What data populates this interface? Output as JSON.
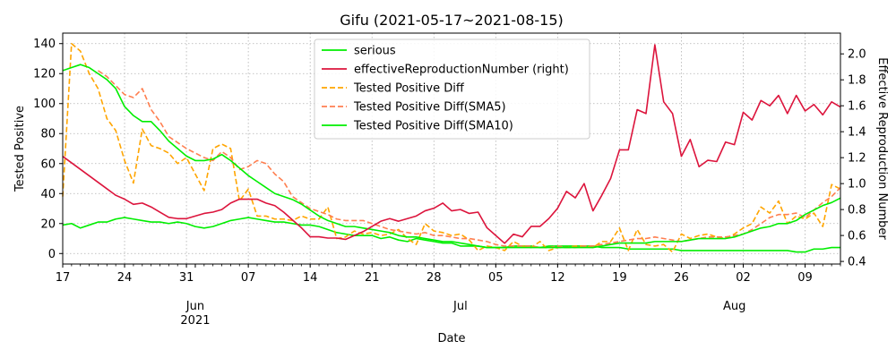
{
  "chart_data": {
    "type": "line",
    "title": "Gifu (2021-05-17~2021-08-15)",
    "xlabel": "Date",
    "ylabel_left": "Tested Positive",
    "ylabel_right": "Effective Reproduction Number",
    "start_date": "2021-05-17",
    "end_date": "2021-08-13",
    "ylim_left": [
      -7,
      147
    ],
    "ylim_right": [
      0.38,
      2.16
    ],
    "yticks_left": [
      "0",
      "20",
      "40",
      "60",
      "80",
      "100",
      "120",
      "140"
    ],
    "yticks_right": [
      "0.4",
      "0.6",
      "0.8",
      "1.0",
      "1.2",
      "1.4",
      "1.6",
      "1.8",
      "2.0"
    ],
    "x_day_ticks": [
      {
        "date": "2021-05-17",
        "label": "17"
      },
      {
        "date": "2021-05-24",
        "label": "24"
      },
      {
        "date": "2021-05-31",
        "label": "31"
      },
      {
        "date": "2021-06-07",
        "label": "07"
      },
      {
        "date": "2021-06-14",
        "label": "14"
      },
      {
        "date": "2021-06-21",
        "label": "21"
      },
      {
        "date": "2021-06-28",
        "label": "28"
      },
      {
        "date": "2021-07-05",
        "label": "05"
      },
      {
        "date": "2021-07-12",
        "label": "12"
      },
      {
        "date": "2021-07-19",
        "label": "19"
      },
      {
        "date": "2021-07-26",
        "label": "26"
      },
      {
        "date": "2021-08-02",
        "label": "02"
      },
      {
        "date": "2021-08-09",
        "label": "09"
      }
    ],
    "x_month_ticks": [
      {
        "date": "2021-06-01",
        "label": "Jun",
        "sublabel": "2021"
      },
      {
        "date": "2021-07-01",
        "label": "Jul",
        "sublabel": ""
      },
      {
        "date": "2021-08-01",
        "label": "Aug",
        "sublabel": ""
      }
    ],
    "legend_position": "upper-center",
    "grid": true,
    "series": [
      {
        "name": "serious",
        "axis": "left",
        "color": "#00ee00",
        "dash": "solid",
        "values": [
          19,
          20,
          17,
          19,
          21,
          21,
          23,
          24,
          23,
          22,
          21,
          21,
          20,
          21,
          20,
          18,
          17,
          18,
          20,
          22,
          23,
          24,
          23,
          22,
          21,
          21,
          20,
          19,
          19,
          18,
          16,
          14,
          13,
          12,
          12,
          12,
          10,
          11,
          9,
          8,
          10,
          9,
          8,
          7,
          7,
          5,
          5,
          5,
          4,
          4,
          4,
          5,
          5,
          5,
          4,
          5,
          5,
          5,
          5,
          5,
          5,
          4,
          4,
          4,
          3,
          3,
          3,
          3,
          3,
          3,
          2,
          2,
          2,
          2,
          2,
          2,
          2,
          2,
          2,
          2,
          2,
          2,
          2,
          1,
          1,
          3,
          3,
          4,
          4,
          4,
          4,
          4,
          4,
          4,
          4
        ]
      },
      {
        "name": "effectiveReproductionNumber (right)",
        "axis": "right",
        "color": "#dc143c",
        "dash": "solid",
        "values": [
          1.21,
          1.16,
          1.11,
          1.06,
          1.01,
          0.96,
          0.91,
          0.88,
          0.84,
          0.85,
          0.82,
          0.78,
          0.74,
          0.73,
          0.73,
          0.75,
          0.77,
          0.78,
          0.8,
          0.85,
          0.88,
          0.88,
          0.88,
          0.85,
          0.83,
          0.78,
          0.72,
          0.66,
          0.59,
          0.59,
          0.58,
          0.58,
          0.57,
          0.6,
          0.63,
          0.67,
          0.71,
          0.73,
          0.71,
          0.73,
          0.75,
          0.79,
          0.81,
          0.85,
          0.79,
          0.8,
          0.77,
          0.78,
          0.66,
          0.6,
          0.54,
          0.61,
          0.59,
          0.67,
          0.67,
          0.73,
          0.81,
          0.94,
          0.89,
          1.0,
          0.79,
          0.91,
          1.04,
          1.26,
          1.26,
          1.57,
          1.54,
          2.07,
          1.63,
          1.54,
          1.21,
          1.34,
          1.13,
          1.18,
          1.17,
          1.32,
          1.3,
          1.55,
          1.49,
          1.64,
          1.6,
          1.68,
          1.54,
          1.68,
          1.56,
          1.61,
          1.53,
          1.63,
          1.59,
          1.67,
          1.53,
          1.65,
          1.65,
          1.75,
          1.9
        ]
      },
      {
        "name": "Tested Positive Diff",
        "axis": "left",
        "color": "#ffa500",
        "dash": "dashed",
        "values": [
          38,
          140,
          135,
          120,
          110,
          90,
          82,
          62,
          47,
          83,
          72,
          70,
          67,
          60,
          64,
          53,
          42,
          70,
          73,
          70,
          35,
          43,
          25,
          25,
          23,
          23,
          22,
          25,
          23,
          23,
          31,
          10,
          11,
          15,
          13,
          14,
          12,
          13,
          16,
          10,
          6,
          20,
          15,
          14,
          12,
          13,
          9,
          2,
          5,
          4,
          2,
          8,
          5,
          4,
          8,
          2,
          4,
          4,
          5,
          5,
          4,
          8,
          8,
          17,
          2,
          16,
          6,
          5,
          6,
          1,
          13,
          10,
          12,
          13,
          11,
          10,
          13,
          17,
          20,
          31,
          27,
          35,
          20,
          25,
          23,
          27,
          18,
          46,
          43,
          52,
          43,
          52,
          52,
          65,
          50,
          55,
          57,
          85,
          85,
          100,
          130
        ]
      },
      {
        "name": "Tested Positive Diff(SMA5)",
        "axis": "left",
        "color": "#ff7f50",
        "dash": "dashed",
        "values": [
          null,
          null,
          null,
          null,
          122,
          118,
          112,
          106,
          104,
          110,
          96,
          88,
          78,
          74,
          70,
          67,
          64,
          62,
          68,
          64,
          56,
          58,
          62,
          60,
          53,
          48,
          38,
          34,
          30,
          28,
          26,
          23,
          22,
          22,
          22,
          20,
          18,
          16,
          15,
          14,
          13,
          14,
          12,
          12,
          11,
          10,
          10,
          9,
          8,
          6,
          5,
          5,
          5,
          5,
          4,
          4,
          5,
          4,
          4,
          5,
          5,
          6,
          7,
          8,
          9,
          10,
          10,
          11,
          10,
          9,
          8,
          9,
          10,
          11,
          11,
          11,
          12,
          13,
          16,
          20,
          24,
          26,
          26,
          27,
          24,
          29,
          34,
          38,
          44,
          48,
          51,
          56,
          55,
          58,
          60,
          67,
          75,
          90
        ]
      },
      {
        "name": "Tested Positive Diff(SMA10)",
        "axis": "left",
        "color": "#00ee00",
        "dash": "solid",
        "values": [
          122,
          124,
          126,
          124,
          120,
          116,
          110,
          98,
          92,
          88,
          88,
          82,
          75,
          70,
          65,
          62,
          62,
          63,
          66,
          62,
          57,
          52,
          48,
          44,
          40,
          38,
          36,
          33,
          29,
          25,
          22,
          20,
          18,
          18,
          17,
          16,
          15,
          14,
          12,
          11,
          11,
          10,
          9,
          8,
          8,
          7,
          6,
          5,
          4,
          4,
          4,
          4,
          4,
          4,
          4,
          4,
          4,
          4,
          4,
          4,
          4,
          5,
          6,
          7,
          7,
          7,
          7,
          8,
          8,
          8,
          8,
          9,
          10,
          10,
          10,
          10,
          11,
          13,
          15,
          17,
          18,
          20,
          20,
          22,
          26,
          29,
          32,
          34,
          37,
          40,
          42,
          45,
          50,
          60,
          70,
          76
        ]
      }
    ]
  }
}
